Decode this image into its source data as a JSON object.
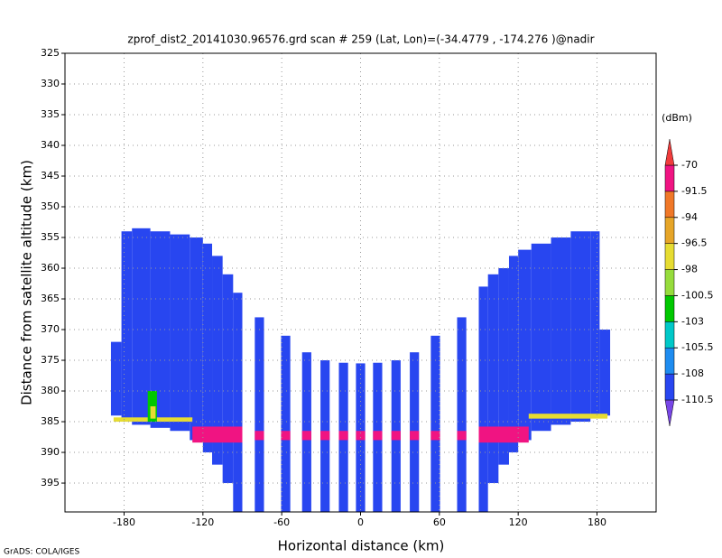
{
  "chart_data": {
    "type": "heatmap",
    "title": "zprof_dist2_20141030.96576.grd  scan # 259  (Lat, Lon)=(-34.4779 , -174.276 )@nadir",
    "xlabel": "Horizontal distance (km)",
    "ylabel": "Distance from satellite altitude (km)",
    "colorbar_label": "(dBm)",
    "footer": "GrADS: COLA/IGES",
    "xlim": [
      -225,
      225
    ],
    "xticks": [
      -180,
      -120,
      -60,
      0,
      60,
      120,
      180
    ],
    "ylim": [
      325,
      399.7
    ],
    "yticks": [
      325,
      330,
      335,
      340,
      345,
      350,
      355,
      360,
      365,
      370,
      375,
      380,
      385,
      390,
      395
    ],
    "y_inverted": true,
    "grid": true,
    "levels": [
      -110.5,
      -108,
      -105.5,
      -103,
      -100.5,
      -98,
      -96.5,
      -94,
      -91.5,
      -70
    ],
    "colors": [
      "#7846e6",
      "#2846f0",
      "#1e8cf0",
      "#00c8c8",
      "#00c800",
      "#96dc3c",
      "#e6dc32",
      "#e6a528",
      "#f07828",
      "#f01482",
      "#f03c3c"
    ],
    "cells": [
      {
        "x": [
          -190,
          -182
        ],
        "y": [
          372,
          384
        ],
        "value": -109
      },
      {
        "x": [
          -182,
          -174
        ],
        "y": [
          354,
          385
        ],
        "value": -109
      },
      {
        "x": [
          -174,
          -160
        ],
        "y": [
          353.5,
          385.5
        ],
        "value": -109
      },
      {
        "x": [
          -160,
          -145
        ],
        "y": [
          354,
          386
        ],
        "value": -109
      },
      {
        "x": [
          -145,
          -130
        ],
        "y": [
          354.5,
          386.5
        ],
        "value": -109
      },
      {
        "x": [
          -130,
          -120
        ],
        "y": [
          355,
          388
        ],
        "value": -109
      },
      {
        "x": [
          -120,
          -113
        ],
        "y": [
          356,
          390
        ],
        "value": -109
      },
      {
        "x": [
          -113,
          -105
        ],
        "y": [
          358,
          392
        ],
        "value": -109
      },
      {
        "x": [
          -105,
          -97
        ],
        "y": [
          361,
          395
        ],
        "value": -109
      },
      {
        "x": [
          -97,
          -90
        ],
        "y": [
          364,
          399.7
        ],
        "value": -109
      },
      {
        "x": [
          -80.5,
          -73.5
        ],
        "y": [
          368,
          399.7
        ],
        "value": -109
      },
      {
        "x": [
          -60.5,
          -53.5
        ],
        "y": [
          371,
          399.7
        ],
        "value": -109
      },
      {
        "x": [
          -44.5,
          -37.5
        ],
        "y": [
          373.7,
          399.7
        ],
        "value": -109
      },
      {
        "x": [
          -30.5,
          -23.5
        ],
        "y": [
          375,
          399.7
        ],
        "value": -109
      },
      {
        "x": [
          -16.5,
          -9.5
        ],
        "y": [
          375.4,
          399.7
        ],
        "value": -109
      },
      {
        "x": [
          -3.5,
          3.5
        ],
        "y": [
          375.5,
          399.7
        ],
        "value": -109
      },
      {
        "x": [
          9.5,
          16.5
        ],
        "y": [
          375.4,
          399.7
        ],
        "value": -109
      },
      {
        "x": [
          23.5,
          30.5
        ],
        "y": [
          375,
          399.7
        ],
        "value": -109
      },
      {
        "x": [
          37.5,
          44.5
        ],
        "y": [
          373.7,
          399.7
        ],
        "value": -109
      },
      {
        "x": [
          53.5,
          60.5
        ],
        "y": [
          371,
          399.7
        ],
        "value": -109
      },
      {
        "x": [
          73.5,
          80.5
        ],
        "y": [
          368,
          399.7
        ],
        "value": -109
      },
      {
        "x": [
          90,
          97
        ],
        "y": [
          363,
          399.7
        ],
        "value": -109
      },
      {
        "x": [
          97,
          105
        ],
        "y": [
          361,
          395
        ],
        "value": -109
      },
      {
        "x": [
          105,
          113
        ],
        "y": [
          360,
          392
        ],
        "value": -109
      },
      {
        "x": [
          113,
          120
        ],
        "y": [
          358,
          390
        ],
        "value": -109
      },
      {
        "x": [
          120,
          130
        ],
        "y": [
          357,
          388
        ],
        "value": -109
      },
      {
        "x": [
          130,
          145
        ],
        "y": [
          356,
          386.5
        ],
        "value": -109
      },
      {
        "x": [
          145,
          160
        ],
        "y": [
          355,
          385.5
        ],
        "value": -109
      },
      {
        "x": [
          160,
          175
        ],
        "y": [
          354,
          385
        ],
        "value": -109
      },
      {
        "x": [
          175,
          182
        ],
        "y": [
          354,
          384
        ],
        "value": -109
      },
      {
        "x": [
          182,
          190
        ],
        "y": [
          370,
          384
        ],
        "value": -109
      },
      {
        "x": [
          -188,
          -128
        ],
        "y": [
          384.3,
          385
        ],
        "value": -97
      },
      {
        "x": [
          128,
          188
        ],
        "y": [
          383.7,
          384.5
        ],
        "value": -97
      },
      {
        "x": [
          -162,
          -155
        ],
        "y": [
          380,
          385
        ],
        "value": -101.5
      },
      {
        "x": [
          -160,
          -156
        ],
        "y": [
          382.5,
          384.5
        ],
        "value": -97
      },
      {
        "x": [
          -128,
          -90
        ],
        "y": [
          385.8,
          388.4
        ],
        "value": -85
      },
      {
        "x": [
          -80.5,
          -73.5
        ],
        "y": [
          386.5,
          388
        ],
        "value": -85
      },
      {
        "x": [
          -60.5,
          -53.5
        ],
        "y": [
          386.5,
          388
        ],
        "value": -85
      },
      {
        "x": [
          -44.5,
          -37.5
        ],
        "y": [
          386.5,
          388
        ],
        "value": -85
      },
      {
        "x": [
          -30.5,
          -23.5
        ],
        "y": [
          386.5,
          388
        ],
        "value": -85
      },
      {
        "x": [
          -16.5,
          -9.5
        ],
        "y": [
          386.5,
          388
        ],
        "value": -85
      },
      {
        "x": [
          -3.5,
          3.5
        ],
        "y": [
          386.5,
          388
        ],
        "value": -85
      },
      {
        "x": [
          9.5,
          16.5
        ],
        "y": [
          386.5,
          388
        ],
        "value": -85
      },
      {
        "x": [
          23.5,
          30.5
        ],
        "y": [
          386.5,
          388
        ],
        "value": -85
      },
      {
        "x": [
          37.5,
          44.5
        ],
        "y": [
          386.5,
          388
        ],
        "value": -85
      },
      {
        "x": [
          53.5,
          60.5
        ],
        "y": [
          386.5,
          388
        ],
        "value": -85
      },
      {
        "x": [
          73.5,
          80.5
        ],
        "y": [
          386.5,
          388
        ],
        "value": -85
      },
      {
        "x": [
          90,
          128
        ],
        "y": [
          385.8,
          388.4
        ],
        "value": -85
      }
    ]
  }
}
